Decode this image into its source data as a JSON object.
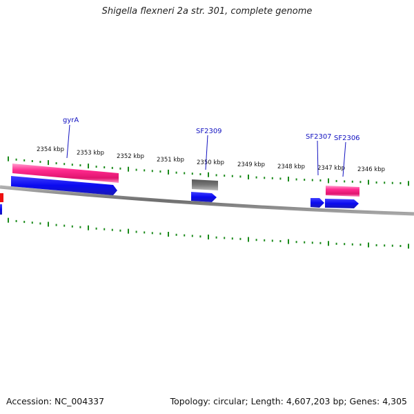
{
  "title": "Shigella flexneri 2a str. 301, complete genome",
  "colors": {
    "tick": "#1a8a1a",
    "backbone": "#8c8c8c",
    "cds_blue": "#1010ee",
    "rna_pink": "#ee2080",
    "pseudo_gray": "#777777",
    "marker_red": "#ee1010",
    "label_blue": "#1010c0"
  },
  "scale_labels": [
    "2354 kbp",
    "2353 kbp",
    "2352 kbp",
    "2351 kbp",
    "2350 kbp",
    "2349 kbp",
    "2348 kbp",
    "2347 kbp",
    "2346 kbp"
  ],
  "gene_labels": [
    "gyrA",
    "SF2309",
    "SF2307",
    "SF2306"
  ],
  "footer": {
    "accession": "Accession: NC_004337",
    "summary": "Topology: circular; Length: 4,607,203 bp; Genes: 4,305"
  }
}
